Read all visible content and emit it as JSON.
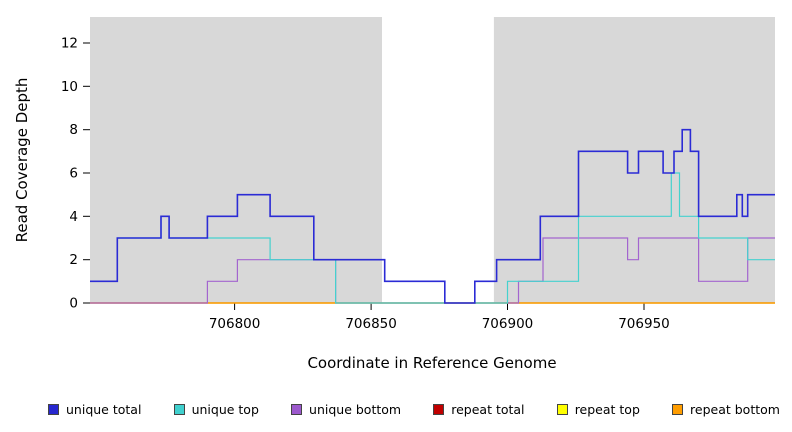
{
  "chart_data": {
    "type": "line",
    "subtype": "step-coverage-plot",
    "title": "",
    "xlabel": "Coordinate in Reference Genome",
    "ylabel": "Read Coverage Depth",
    "xlim": [
      706747,
      706998
    ],
    "ylim": [
      0,
      13.2
    ],
    "xticks": [
      706800,
      706850,
      706900,
      706950
    ],
    "yticks": [
      0,
      2,
      4,
      6,
      8,
      10,
      12
    ],
    "grid": false,
    "background_shade_color": "#d8d8d8",
    "shaded_regions": [
      [
        706747,
        706854
      ],
      [
        706895,
        706998
      ]
    ],
    "series": [
      {
        "name": "repeat total",
        "color": "#c00000",
        "width": 1.2,
        "points": [
          [
            706747,
            0
          ],
          [
            706998,
            0
          ]
        ]
      },
      {
        "name": "repeat top",
        "color": "#ffff00",
        "width": 1.2,
        "points": [
          [
            706747,
            0
          ],
          [
            706998,
            0
          ]
        ]
      },
      {
        "name": "repeat bottom",
        "color": "#ff9d00",
        "width": 1.2,
        "points": [
          [
            706747,
            0
          ],
          [
            706998,
            0
          ]
        ]
      },
      {
        "name": "unique bottom",
        "color": "#a365cf",
        "width": 1.2,
        "points": [
          [
            706747,
            0
          ],
          [
            706790,
            1
          ],
          [
            706801,
            2
          ],
          [
            706837,
            0
          ],
          [
            706904,
            1
          ],
          [
            706913,
            3
          ],
          [
            706944,
            2
          ],
          [
            706948,
            3
          ],
          [
            706970,
            1
          ],
          [
            706988,
            3
          ],
          [
            706998,
            3
          ]
        ]
      },
      {
        "name": "unique top",
        "color": "#45d1ce",
        "width": 1.2,
        "points": [
          [
            706747,
            1
          ],
          [
            706757,
            3
          ],
          [
            706773,
            4
          ],
          [
            706776,
            3
          ],
          [
            706813,
            2
          ],
          [
            706837,
            0
          ],
          [
            706900,
            1
          ],
          [
            706926,
            4
          ],
          [
            706960,
            6
          ],
          [
            706963,
            4
          ],
          [
            706970,
            3
          ],
          [
            706988,
            2
          ],
          [
            706998,
            2
          ]
        ]
      },
      {
        "name": "unique total",
        "color": "#2b2bd5",
        "width": 1.6,
        "points": [
          [
            706747,
            1
          ],
          [
            706757,
            3
          ],
          [
            706773,
            4
          ],
          [
            706776,
            3
          ],
          [
            706790,
            4
          ],
          [
            706801,
            5
          ],
          [
            706813,
            4
          ],
          [
            706829,
            2
          ],
          [
            706855,
            1
          ],
          [
            706877,
            0
          ],
          [
            706888,
            1
          ],
          [
            706896,
            2
          ],
          [
            706912,
            4
          ],
          [
            706926,
            7
          ],
          [
            706944,
            6
          ],
          [
            706948,
            7
          ],
          [
            706957,
            6
          ],
          [
            706961,
            7
          ],
          [
            706964,
            8
          ],
          [
            706967,
            7
          ],
          [
            706970,
            4
          ],
          [
            706984,
            5
          ],
          [
            706986,
            4
          ],
          [
            706988,
            5
          ],
          [
            706998,
            5
          ]
        ]
      }
    ],
    "legend": [
      {
        "label": "unique total",
        "color": "#2727cf"
      },
      {
        "label": "unique top",
        "color": "#40d0ce"
      },
      {
        "label": "unique bottom",
        "color": "#9c59cd"
      },
      {
        "label": "repeat total",
        "color": "#c00000"
      },
      {
        "label": "repeat top",
        "color": "#ffff00"
      },
      {
        "label": "repeat bottom",
        "color": "#ff9d00"
      }
    ],
    "legend_position": "bottom"
  }
}
